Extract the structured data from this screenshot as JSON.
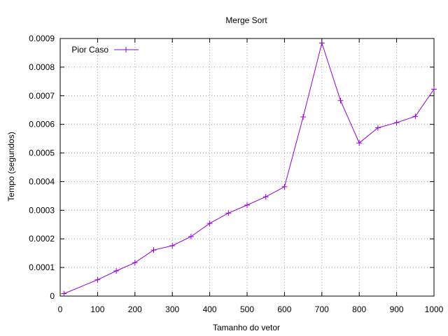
{
  "chart_data": {
    "type": "line",
    "title": "Merge Sort",
    "xlabel": "Tamanho do vetor",
    "ylabel": "Tempo (segundos)",
    "xlim": [
      0,
      1000
    ],
    "ylim": [
      0,
      0.0009
    ],
    "xticks": [
      0,
      100,
      200,
      300,
      400,
      500,
      600,
      700,
      800,
      900,
      1000
    ],
    "yticks": [
      0,
      0.0001,
      0.0002,
      0.0003,
      0.0004,
      0.0005,
      0.0006,
      0.0007,
      0.0008,
      0.0009
    ],
    "xtick_labels": [
      "0",
      "100",
      "200",
      "300",
      "400",
      "500",
      "600",
      "700",
      "800",
      "900",
      "1000"
    ],
    "ytick_labels": [
      "0",
      "0.0001",
      "0.0002",
      "0.0003",
      "0.0004",
      "0.0005",
      "0.0006",
      "0.0007",
      "0.0008",
      "0.0009"
    ],
    "grid": true,
    "legend_position": "top-left",
    "series": [
      {
        "name": "Pior Caso",
        "color": "#9400d3",
        "marker": "plus",
        "x": [
          10,
          100,
          150,
          200,
          250,
          300,
          350,
          400,
          450,
          500,
          550,
          600,
          650,
          700,
          750,
          800,
          850,
          900,
          950,
          1000
        ],
        "y": [
          8.5e-06,
          5.7e-05,
          8.8e-05,
          0.000117,
          0.000161,
          0.000176,
          0.000208,
          0.000254,
          0.00029,
          0.000318,
          0.000347,
          0.000382,
          0.000626,
          0.000884,
          0.000683,
          0.000535,
          0.000588,
          0.000606,
          0.000628,
          0.000723
        ]
      }
    ]
  }
}
